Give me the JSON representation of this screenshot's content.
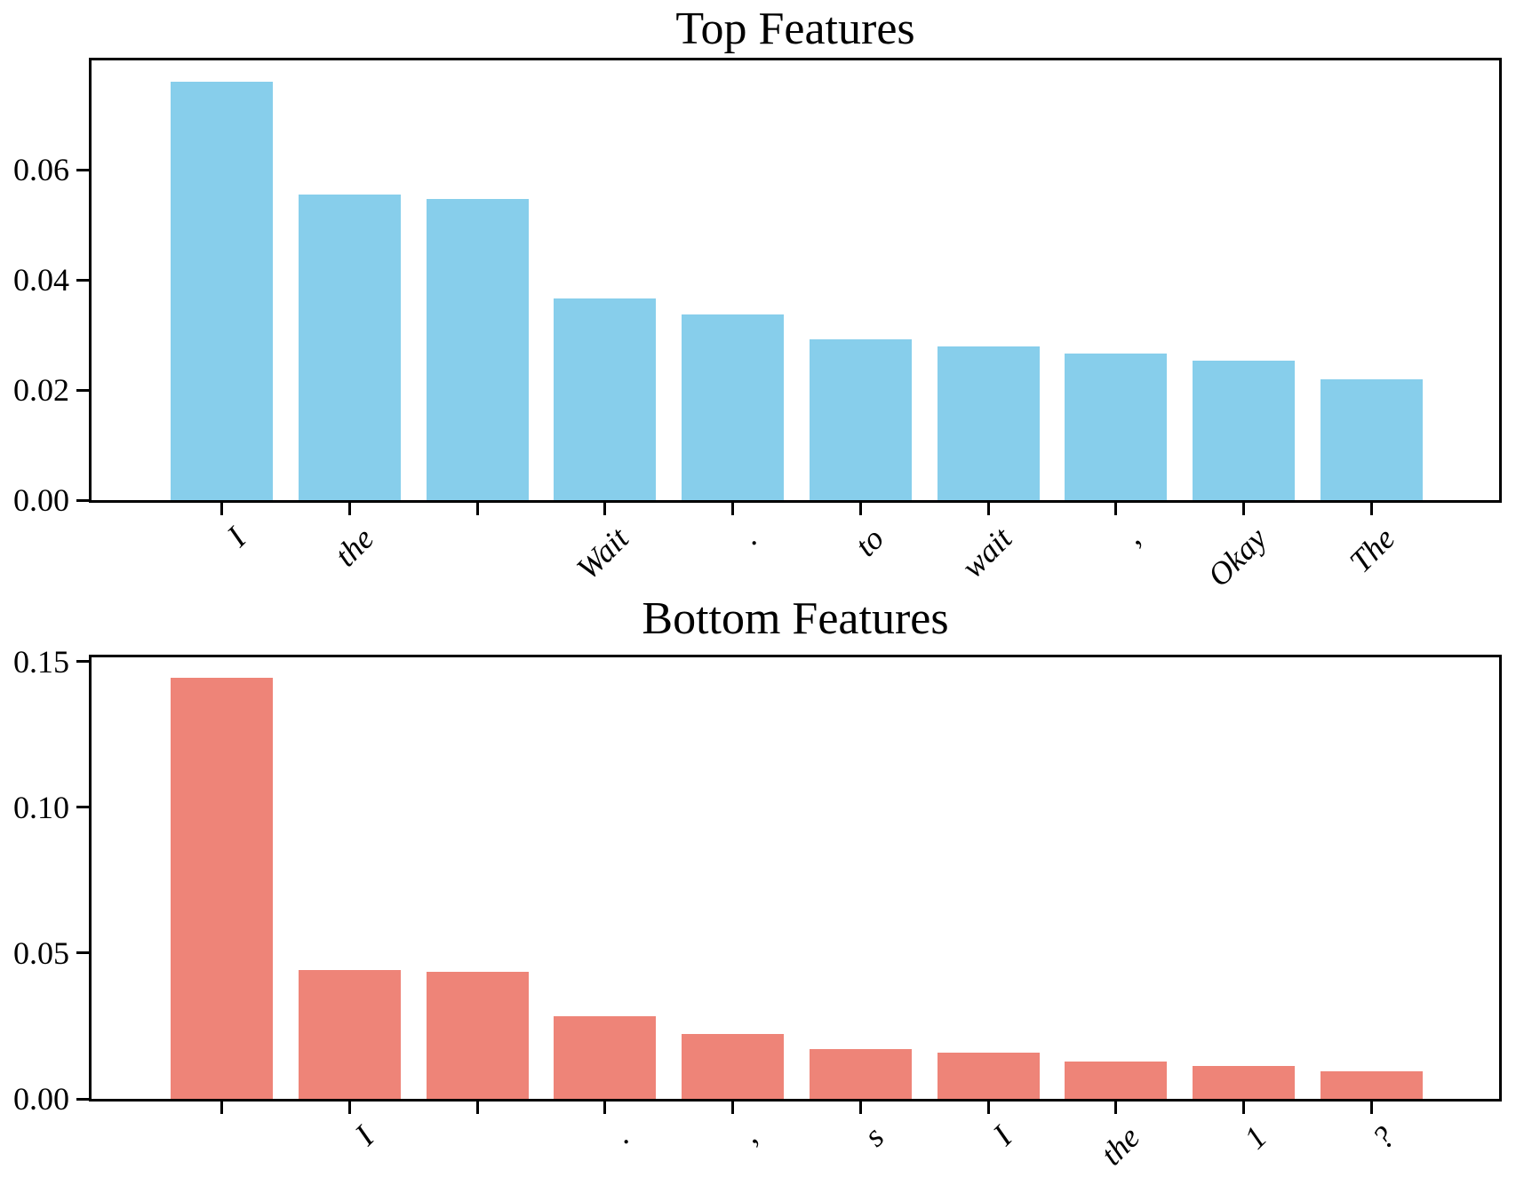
{
  "figure": {
    "background": "#ffffff",
    "axis_color": "#000000"
  },
  "chart_data": [
    {
      "type": "bar",
      "title": "Top Features",
      "categories": [
        "I",
        "the",
        "",
        "Wait",
        ".",
        "to",
        "wait",
        ",",
        "Okay",
        "The"
      ],
      "values": [
        0.076,
        0.0555,
        0.0547,
        0.0366,
        0.0337,
        0.0292,
        0.0279,
        0.0266,
        0.0253,
        0.022
      ],
      "yticks": [
        0,
        0.02,
        0.04,
        0.06
      ],
      "ytick_labels": [
        "0.00",
        "0.02",
        "0.04",
        "0.06"
      ],
      "ylim": [
        0,
        0.0799
      ],
      "xlabel": "",
      "ylabel": "",
      "grid": false,
      "legend": "none",
      "bar_color": "#87CEEB"
    },
    {
      "type": "bar",
      "title": "Bottom Features",
      "categories": [
        "",
        "I",
        "",
        ".",
        ",",
        "s",
        "I",
        "the",
        "1",
        "?"
      ],
      "values": [
        0.1445,
        0.0442,
        0.0436,
        0.0285,
        0.0223,
        0.0171,
        0.0158,
        0.0128,
        0.0112,
        0.0094
      ],
      "yticks": [
        0,
        0.05,
        0.1,
        0.15
      ],
      "ytick_labels": [
        "0.00",
        "0.05",
        "0.10",
        "0.15"
      ],
      "ylim": [
        0,
        0.1515
      ],
      "xlabel": "",
      "ylabel": "",
      "grid": false,
      "legend": "none",
      "bar_color": "#EE8478"
    }
  ]
}
